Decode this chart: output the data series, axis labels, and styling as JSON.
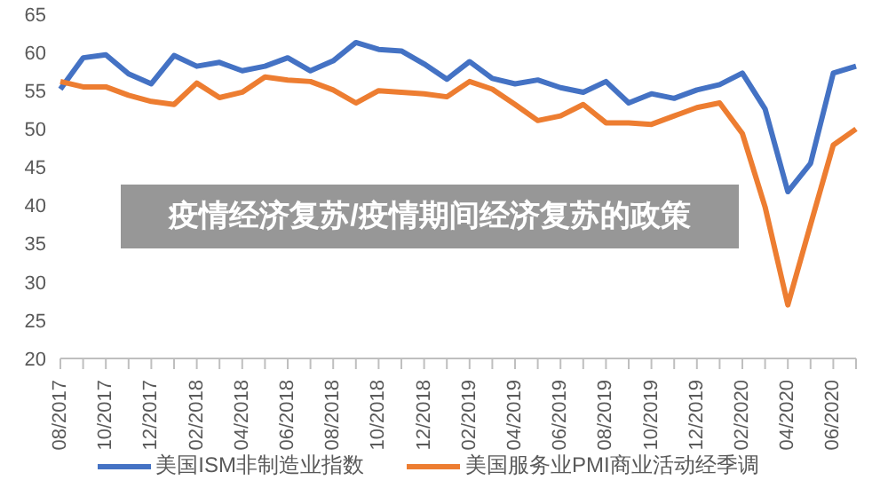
{
  "chart_data": {
    "type": "line",
    "title": "疫情经济复苏/疫情期间经济复苏的政策",
    "categories": [
      "08/2017",
      null,
      "10/2017",
      null,
      "12/2017",
      null,
      "02/2018",
      null,
      "04/2018",
      null,
      "06/2018",
      null,
      "08/2018",
      null,
      "10/2018",
      null,
      "12/2018",
      null,
      "02/2019",
      null,
      "04/2019",
      null,
      "06/2019",
      null,
      "08/2019",
      null,
      "10/2019",
      null,
      "12/2019",
      null,
      "02/2020",
      null,
      "04/2020",
      null,
      "06/2020",
      null
    ],
    "series": [
      {
        "name": "美国ISM非制造业指数",
        "color": "#4472c4",
        "values": [
          55.2,
          59.3,
          59.7,
          57.2,
          55.9,
          59.6,
          58.2,
          58.7,
          57.6,
          58.2,
          59.3,
          57.6,
          58.9,
          61.3,
          60.4,
          60.2,
          58.5,
          56.5,
          58.8,
          56.6,
          55.9,
          56.4,
          55.4,
          54.8,
          56.2,
          53.4,
          54.6,
          54.0,
          55.1,
          55.8,
          57.3,
          52.6,
          41.8,
          45.5,
          57.3,
          58.2
        ]
      },
      {
        "name": "美国服务业PMI商业活动经季调",
        "color": "#ed7d31",
        "values": [
          56.2,
          55.5,
          55.5,
          54.4,
          53.6,
          53.2,
          56.0,
          54.1,
          54.8,
          56.8,
          56.4,
          56.2,
          55.1,
          53.4,
          55.0,
          54.8,
          54.6,
          54.2,
          56.2,
          55.2,
          53.2,
          51.1,
          51.7,
          53.2,
          50.8,
          50.8,
          50.6,
          51.7,
          52.8,
          53.4,
          49.4,
          39.8,
          27.0,
          37.5,
          47.9,
          50.0
        ]
      }
    ],
    "ylim": [
      20,
      65
    ],
    "yticks": [
      20,
      25,
      30,
      35,
      40,
      45,
      50,
      55,
      60,
      65
    ],
    "grid": false,
    "legend": "bottom",
    "marker": "none",
    "line_style": "solid"
  }
}
